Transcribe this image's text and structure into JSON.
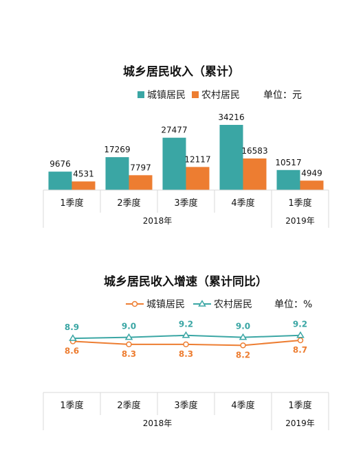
{
  "chart_data": [
    {
      "type": "bar",
      "title": "城乡居民收入（累计）",
      "unit_label": "单位：元",
      "categories": [
        "1季度",
        "2季度",
        "3季度",
        "4季度",
        "1季度"
      ],
      "groups": [
        {
          "label": "2018年",
          "span": 4
        },
        {
          "label": "2019年",
          "span": 1
        }
      ],
      "series": [
        {
          "name": "城镇居民",
          "color": "#3aa6a4",
          "values": [
            9676,
            17269,
            27477,
            34216,
            10517
          ]
        },
        {
          "name": "农村居民",
          "color": "#ed7d31",
          "values": [
            4531,
            7797,
            12117,
            16583,
            4949
          ]
        }
      ],
      "legend": "top-center",
      "grid": false
    },
    {
      "type": "line",
      "title": "城乡居民收入增速（累计同比）",
      "unit_label": "单位：%",
      "categories": [
        "1季度",
        "2季度",
        "3季度",
        "4季度",
        "1季度"
      ],
      "groups": [
        {
          "label": "2018年",
          "span": 4
        },
        {
          "label": "2019年",
          "span": 1
        }
      ],
      "series": [
        {
          "name": "城镇居民",
          "color": "#ed7d31",
          "marker": "circle",
          "values": [
            8.6,
            8.3,
            8.3,
            8.2,
            8.7
          ]
        },
        {
          "name": "农村居民",
          "color": "#3aa6a4",
          "marker": "triangle",
          "values": [
            8.9,
            9.0,
            9.2,
            9.0,
            9.2
          ]
        }
      ],
      "legend": "top-center",
      "grid": false
    }
  ]
}
